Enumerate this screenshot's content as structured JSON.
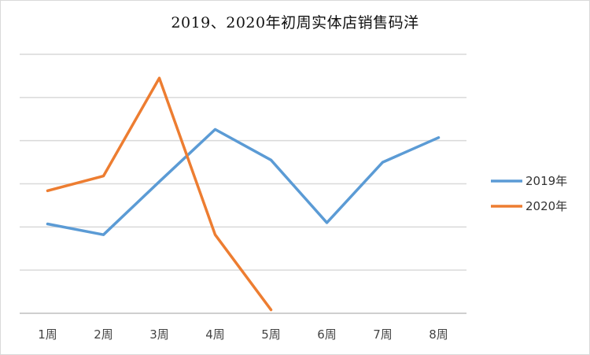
{
  "title": "2019、2020年初周实体店销售码洋",
  "chart_data": {
    "type": "line",
    "title": "2019、2020年初周实体店销售码洋",
    "categories": [
      "1周",
      "2周",
      "3周",
      "4周",
      "5周",
      "6周",
      "7周",
      "8周"
    ],
    "ylim": [
      0,
      6
    ],
    "grid": true,
    "y_tick_labels_visible": false,
    "legend_position": "right",
    "series": [
      {
        "name": "2019年",
        "color": "#5B9BD5",
        "values": [
          2.07,
          1.82,
          3.05,
          4.26,
          3.55,
          2.1,
          3.5,
          4.07
        ]
      },
      {
        "name": "2020年",
        "color": "#ED7D31",
        "values": [
          2.84,
          3.18,
          5.45,
          1.82,
          0.08,
          null,
          null,
          null
        ]
      }
    ]
  }
}
